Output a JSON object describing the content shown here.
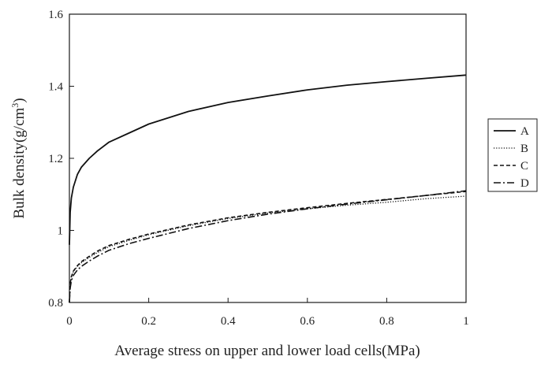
{
  "chart_data": {
    "type": "line",
    "title": "",
    "xlabel": "Average stress on upper and lower load cells(MPa)",
    "ylabel_main": "Bulk density(g/cm",
    "ylabel_sup": "3",
    "ylabel_close": ")",
    "xlim": [
      0,
      1
    ],
    "ylim": [
      0.8,
      1.6
    ],
    "xticks": [
      "0",
      "0.2",
      "0.4",
      "0.6",
      "0.8",
      "1"
    ],
    "yticks": [
      "0.8",
      "1",
      "1.2",
      "1.4",
      "1.6"
    ],
    "grid": false,
    "legend_position": "right",
    "series": [
      {
        "name": "A",
        "dash": "solid",
        "x": [
          0.0,
          0.002,
          0.005,
          0.01,
          0.02,
          0.03,
          0.05,
          0.07,
          0.1,
          0.15,
          0.2,
          0.3,
          0.4,
          0.5,
          0.6,
          0.7,
          0.8,
          0.9,
          1.0
        ],
        "y": [
          0.96,
          1.05,
          1.09,
          1.12,
          1.155,
          1.175,
          1.2,
          1.22,
          1.245,
          1.27,
          1.295,
          1.33,
          1.355,
          1.373,
          1.39,
          1.403,
          1.413,
          1.422,
          1.431
        ]
      },
      {
        "name": "B",
        "dash": "dotted",
        "x": [
          0.0,
          0.002,
          0.005,
          0.01,
          0.02,
          0.03,
          0.05,
          0.07,
          0.1,
          0.15,
          0.2,
          0.3,
          0.4,
          0.5,
          0.6,
          0.7,
          0.8,
          0.9,
          1.0
        ],
        "y": [
          0.8,
          0.85,
          0.87,
          0.885,
          0.9,
          0.91,
          0.925,
          0.938,
          0.955,
          0.972,
          0.988,
          1.013,
          1.033,
          1.048,
          1.06,
          1.07,
          1.078,
          1.088,
          1.095
        ]
      },
      {
        "name": "C",
        "dash": "dashed",
        "x": [
          0.0,
          0.002,
          0.005,
          0.01,
          0.02,
          0.03,
          0.05,
          0.07,
          0.1,
          0.15,
          0.2,
          0.3,
          0.4,
          0.5,
          0.6,
          0.7,
          0.8,
          0.9,
          1.0
        ],
        "y": [
          0.8,
          0.852,
          0.872,
          0.887,
          0.902,
          0.913,
          0.928,
          0.942,
          0.958,
          0.975,
          0.99,
          1.015,
          1.035,
          1.05,
          1.063,
          1.075,
          1.086,
          1.097,
          1.108
        ]
      },
      {
        "name": "D",
        "dash": "dashdot",
        "x": [
          0.0,
          0.002,
          0.005,
          0.01,
          0.02,
          0.03,
          0.05,
          0.07,
          0.1,
          0.15,
          0.2,
          0.3,
          0.4,
          0.5,
          0.6,
          0.7,
          0.8,
          0.9,
          1.0
        ],
        "y": [
          0.8,
          0.84,
          0.86,
          0.875,
          0.89,
          0.9,
          0.915,
          0.928,
          0.945,
          0.963,
          0.978,
          1.005,
          1.027,
          1.045,
          1.06,
          1.073,
          1.085,
          1.097,
          1.11
        ]
      }
    ]
  }
}
